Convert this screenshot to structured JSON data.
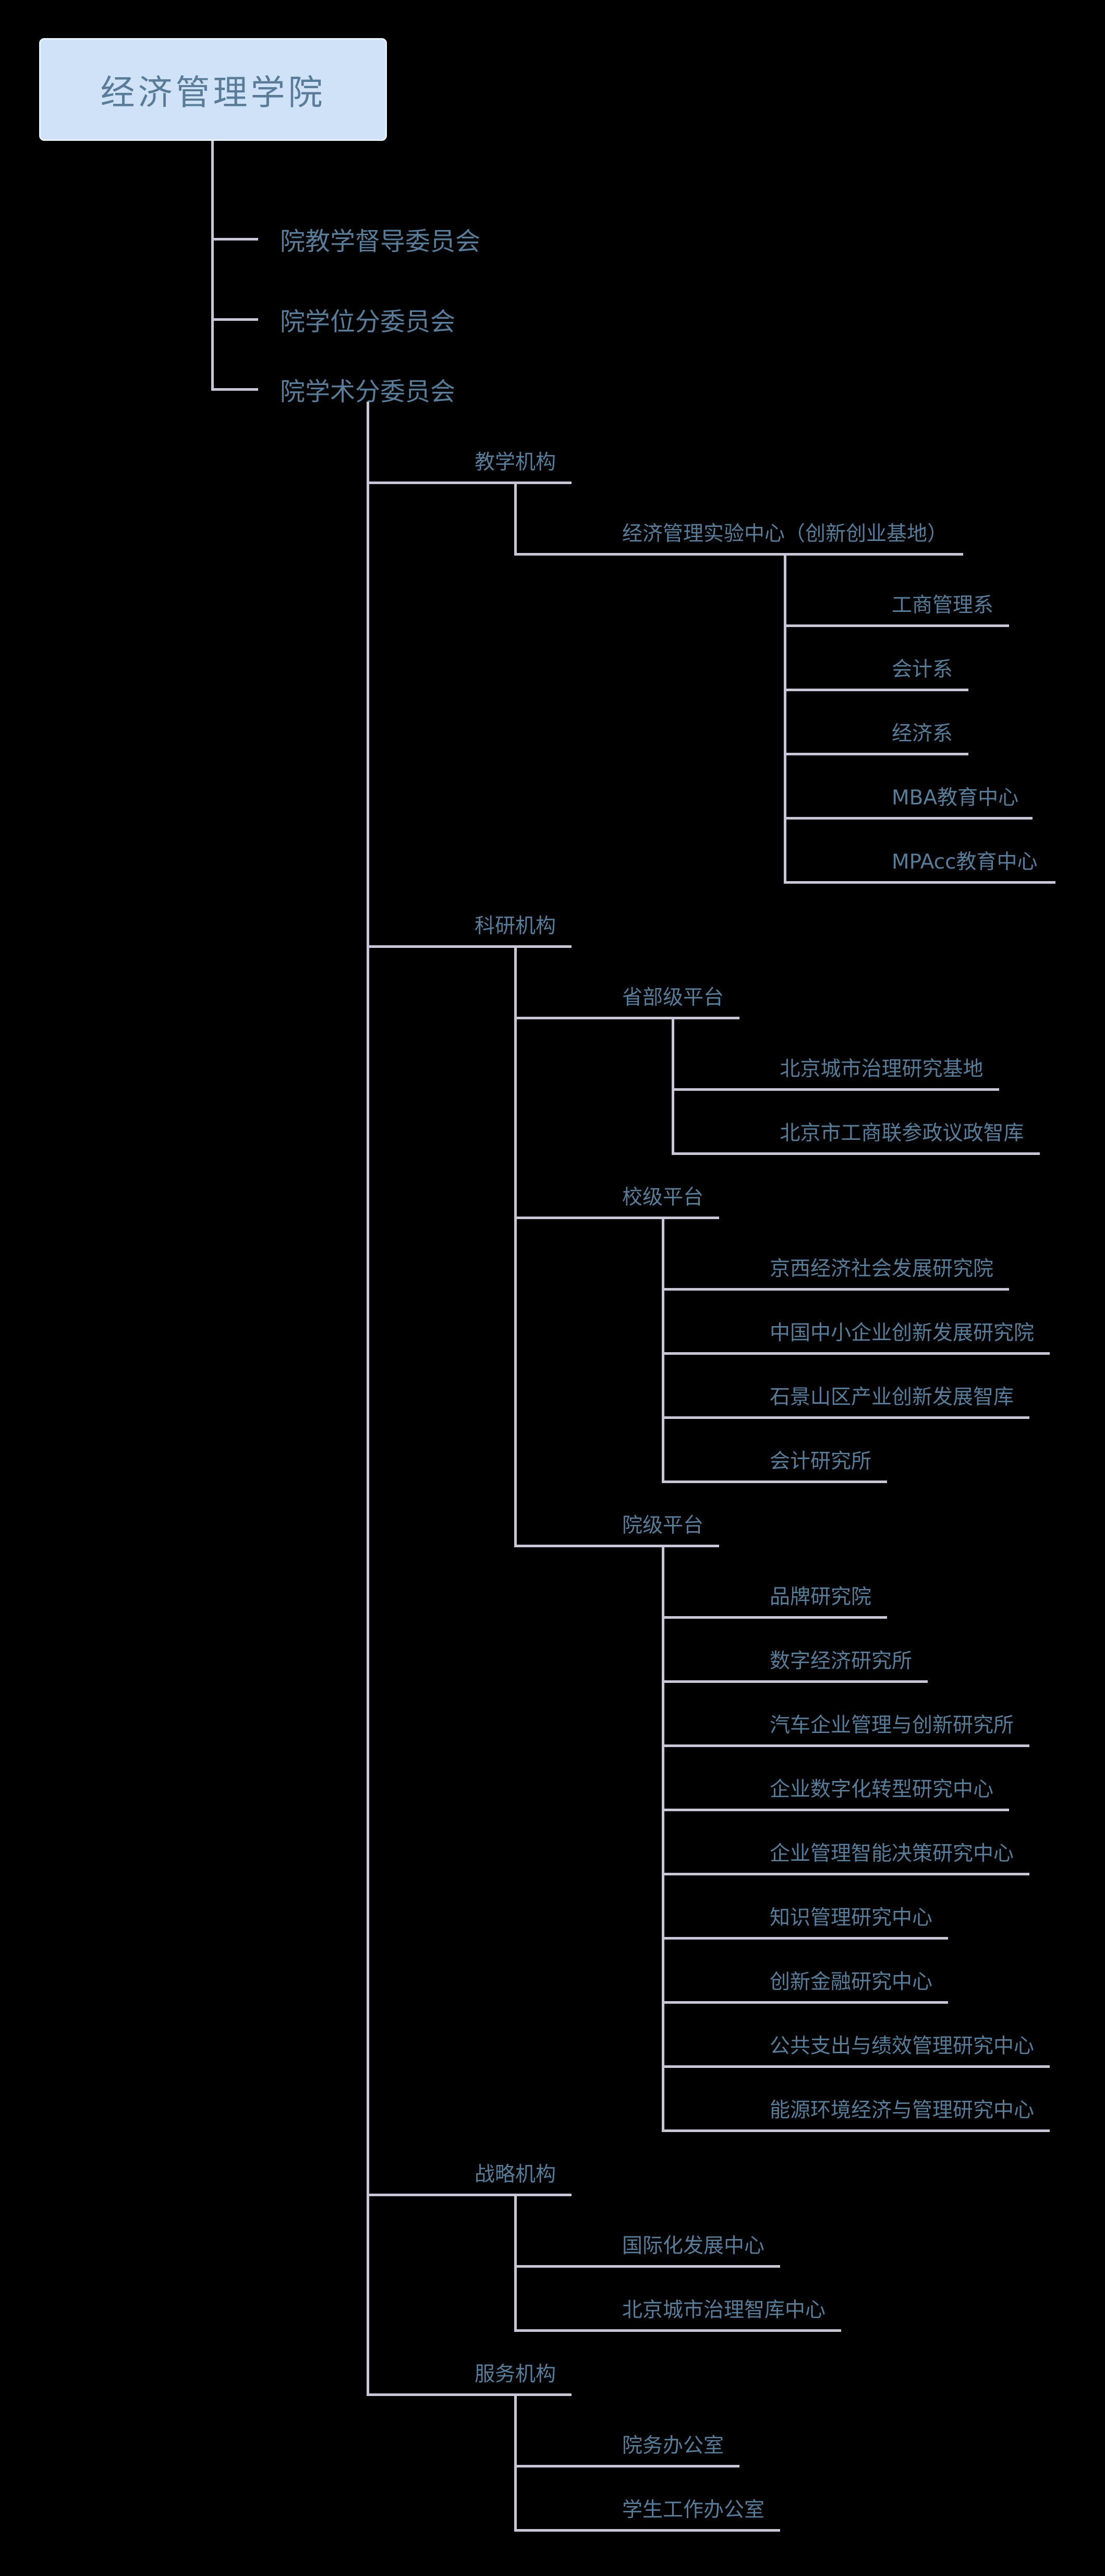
{
  "colors": {
    "background": "#000000",
    "root_box_fill": "#cfe2f7",
    "root_box_border": "#e8f0fb",
    "text": "#5a7c98",
    "line": "#c9c6d8"
  },
  "org": {
    "root": {
      "label": "经济管理学院",
      "children": [
        {
          "label": "院教学督导委员会",
          "children": []
        },
        {
          "label": "院学位分委员会",
          "children": []
        },
        {
          "label": "院学术分委员会",
          "children": [
            {
              "label": "教学机构",
              "children": [
                {
                  "label": "经济管理实验中心（创新创业基地）",
                  "children": [
                    {
                      "label": "工商管理系",
                      "children": []
                    },
                    {
                      "label": "会计系",
                      "children": []
                    },
                    {
                      "label": "经济系",
                      "children": []
                    },
                    {
                      "label": "MBA教育中心",
                      "children": []
                    },
                    {
                      "label": "MPAcc教育中心",
                      "children": []
                    }
                  ]
                }
              ]
            },
            {
              "label": "科研机构",
              "children": [
                {
                  "label": "省部级平台",
                  "children": [
                    {
                      "label": "北京城市治理研究基地",
                      "children": []
                    },
                    {
                      "label": "北京市工商联参政议政智库",
                      "children": []
                    }
                  ]
                },
                {
                  "label": "校级平台",
                  "children": [
                    {
                      "label": "京西经济社会发展研究院",
                      "children": []
                    },
                    {
                      "label": "中国中小企业创新发展研究院",
                      "children": []
                    },
                    {
                      "label": "石景山区产业创新发展智库",
                      "children": []
                    },
                    {
                      "label": "会计研究所",
                      "children": []
                    }
                  ]
                },
                {
                  "label": "院级平台",
                  "children": [
                    {
                      "label": "品牌研究院",
                      "children": []
                    },
                    {
                      "label": "数字经济研究所",
                      "children": []
                    },
                    {
                      "label": "汽车企业管理与创新研究所",
                      "children": []
                    },
                    {
                      "label": "企业数字化转型研究中心",
                      "children": []
                    },
                    {
                      "label": "企业管理智能决策研究中心",
                      "children": []
                    },
                    {
                      "label": "知识管理研究中心",
                      "children": []
                    },
                    {
                      "label": "创新金融研究中心",
                      "children": []
                    },
                    {
                      "label": "公共支出与绩效管理研究中心",
                      "children": []
                    },
                    {
                      "label": "能源环境经济与管理研究中心",
                      "children": []
                    }
                  ]
                }
              ]
            },
            {
              "label": "战略机构",
              "children": [
                {
                  "label": "国际化发展中心",
                  "children": []
                },
                {
                  "label": "北京城市治理智库中心",
                  "children": []
                }
              ]
            },
            {
              "label": "服务机构",
              "children": [
                {
                  "label": "院务办公室",
                  "children": []
                },
                {
                  "label": "学生工作办公室",
                  "children": []
                }
              ]
            }
          ]
        }
      ]
    }
  }
}
